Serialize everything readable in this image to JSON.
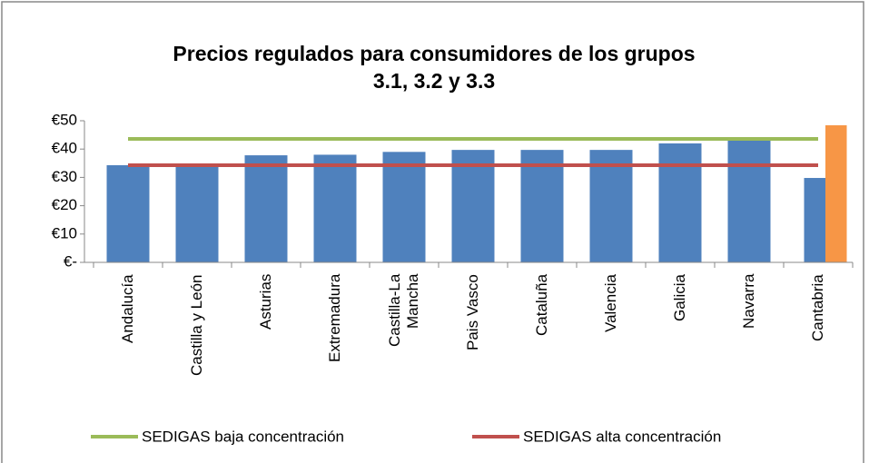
{
  "chart_data": {
    "type": "bar",
    "title": "Precios regulados para consumidores de los grupos 3.1, 3.2 y 3.3",
    "categories": [
      "Andalucía",
      "Castilla y León",
      "Asturias",
      "Extremadura",
      "Castilla-La Mancha",
      "Pais Vasco",
      "Cataluña",
      "Valencia",
      "Galicia",
      "Navarra",
      "Cantabria"
    ],
    "series": [
      {
        "type": "bar",
        "color": "#4f81bd",
        "values": [
          34.3,
          34.3,
          37.8,
          38,
          39,
          39.7,
          39.7,
          39.7,
          42,
          43.3,
          29.8
        ]
      },
      {
        "type": "bar",
        "color": "#f79646",
        "values": [
          null,
          null,
          null,
          null,
          null,
          null,
          null,
          null,
          null,
          null,
          48.4
        ]
      },
      {
        "type": "line",
        "name": "SEDIGAS baja concentración",
        "color": "#9bbb59",
        "values": [
          43.6,
          43.6,
          43.6,
          43.6,
          43.6,
          43.6,
          43.6,
          43.6,
          43.6,
          43.6,
          43.6
        ]
      },
      {
        "type": "line",
        "name": "SEDIGAS alta concentración",
        "color": "#c0504d",
        "values": [
          34.3,
          34.3,
          34.3,
          34.3,
          34.3,
          34.3,
          34.3,
          34.3,
          34.3,
          34.3,
          34.3
        ]
      }
    ],
    "ylim": [
      0,
      50
    ],
    "yticks": [
      {
        "value": 0,
        "label": "€-"
      },
      {
        "value": 10,
        "label": "€10"
      },
      {
        "value": 20,
        "label": "€20"
      },
      {
        "value": 30,
        "label": "€30"
      },
      {
        "value": 40,
        "label": "€40"
      },
      {
        "value": 50,
        "label": "€50"
      }
    ],
    "legend": "bottom",
    "grid": false
  }
}
